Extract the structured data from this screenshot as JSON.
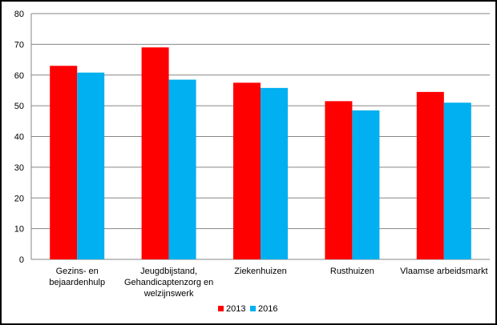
{
  "chart_data": {
    "type": "bar",
    "categories": [
      [
        "Gezins- en",
        "bejaardenhulp"
      ],
      [
        "Jeugdbijstand,",
        "Gehandicaptenzorg en",
        "welzijnswerk"
      ],
      [
        "Ziekenhuizen"
      ],
      [
        "Rusthuizen"
      ],
      [
        "Vlaamse arbeidsmarkt"
      ]
    ],
    "series": [
      {
        "name": "2013",
        "color": "#ff0000",
        "values": [
          63,
          69,
          57.5,
          51.5,
          54.5
        ]
      },
      {
        "name": "2016",
        "color": "#00b0f0",
        "values": [
          60.8,
          58.5,
          55.8,
          48.5,
          51
        ]
      }
    ],
    "yticks": [
      "0",
      "10",
      "20",
      "30",
      "40",
      "50",
      "60",
      "70",
      "80"
    ],
    "ylim": [
      0,
      80
    ],
    "grid": true,
    "legend_position": "bottom"
  }
}
